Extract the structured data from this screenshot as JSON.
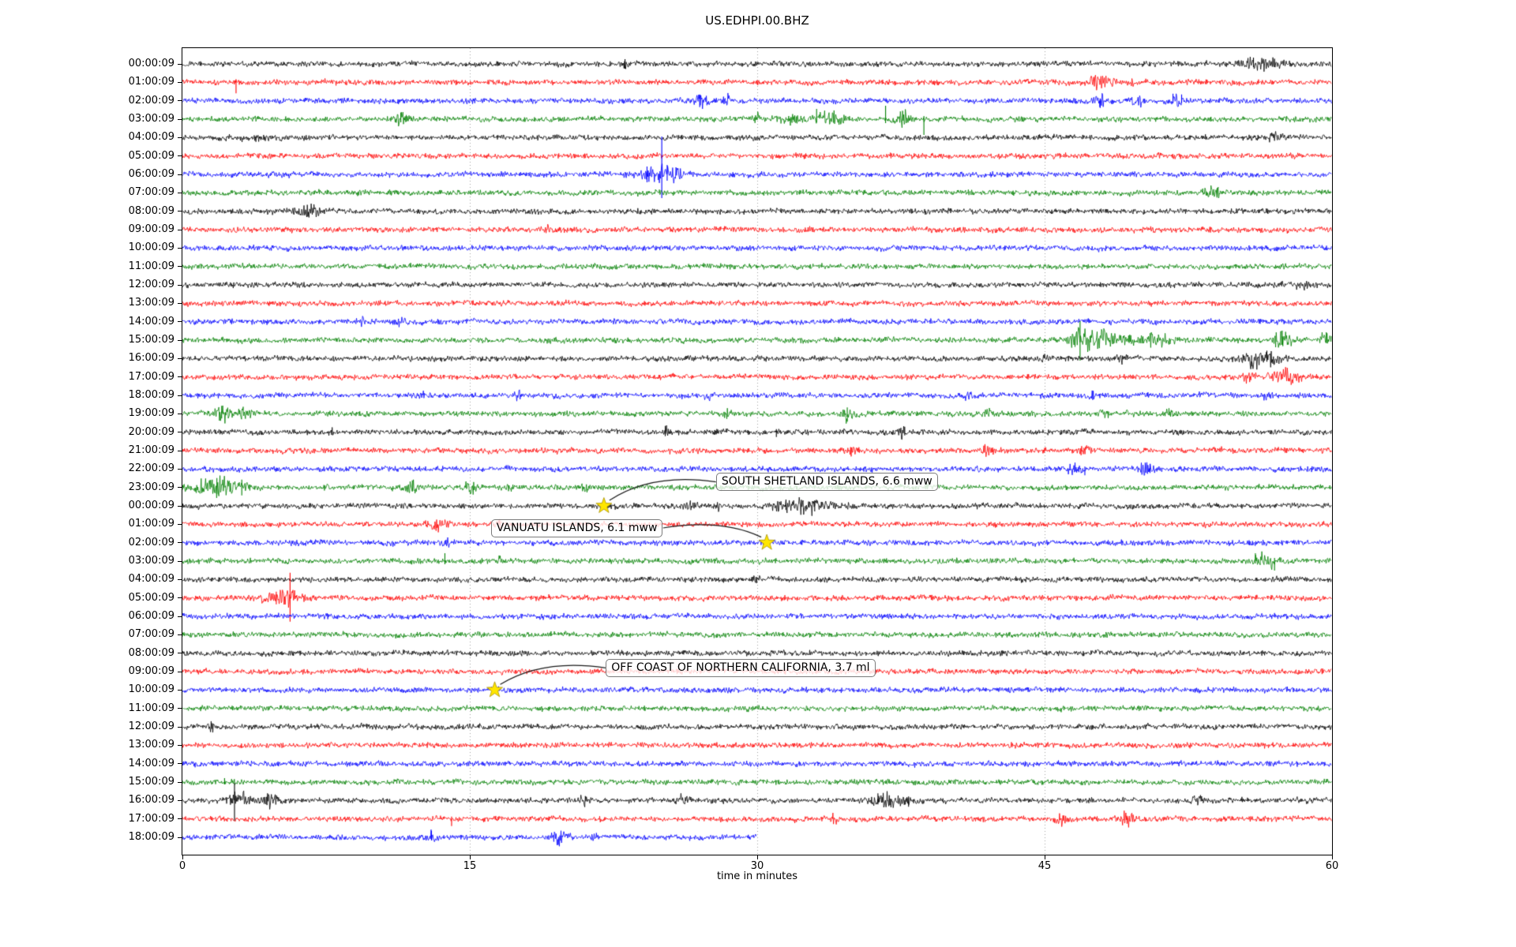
{
  "title": "US.EDHPI.00.BHZ",
  "chart_data": {
    "type": "line",
    "subtype": "seismogram-dayplot",
    "station_id": "US.EDHPI.00.BHZ",
    "xlabel": "time in minutes",
    "x_ticks": [
      0,
      15,
      30,
      45,
      60
    ],
    "x_gridlines": [
      15,
      30,
      45
    ],
    "x_range": [
      0,
      60
    ],
    "minutes_per_row": 60,
    "grid": "vertical-dotted",
    "trace_color_cycle": [
      "#000000",
      "#ff0000",
      "#0000ff",
      "#008000"
    ],
    "marker": {
      "shape": "star",
      "color": "#ffe600"
    },
    "rows": [
      {
        "label": "00:00:09",
        "color": "#000000",
        "end_min": 60,
        "bursts": [
          [
            23.1,
            0.3,
            4
          ],
          [
            56.3,
            1.6,
            5
          ]
        ],
        "spikes": [
          [
            23.1,
            6,
            6
          ],
          [
            55.9,
            8,
            4
          ]
        ]
      },
      {
        "label": "01:00:09",
        "color": "#ff0000",
        "end_min": 60,
        "bursts": [
          [
            2.8,
            0.2,
            3
          ],
          [
            47.7,
            0.7,
            5
          ],
          [
            48.4,
            0.5,
            4
          ],
          [
            49.6,
            0.4,
            4
          ]
        ],
        "spikes": [
          [
            2.8,
            2,
            14
          ]
        ]
      },
      {
        "label": "02:00:09",
        "color": "#0000ff",
        "end_min": 60,
        "bursts": [
          [
            27.1,
            0.5,
            7
          ],
          [
            28.4,
            0.3,
            4
          ],
          [
            47.9,
            0.5,
            6
          ],
          [
            49.9,
            0.4,
            6
          ],
          [
            51.9,
            0.6,
            5
          ]
        ],
        "spikes": [
          [
            27.0,
            8,
            8
          ],
          [
            47.9,
            3,
            9
          ],
          [
            51.7,
            9,
            3
          ],
          [
            52.15,
            8,
            3
          ]
        ]
      },
      {
        "label": "03:00:09",
        "color": "#008000",
        "end_min": 60,
        "bursts": [
          [
            11.4,
            0.5,
            7
          ],
          [
            30.0,
            0.2,
            4
          ],
          [
            31.8,
            0.9,
            5
          ],
          [
            33.8,
            1.2,
            6
          ],
          [
            37.6,
            0.7,
            7
          ]
        ],
        "spikes": [
          [
            33.1,
            13,
            4
          ],
          [
            36.7,
            17,
            5
          ],
          [
            38.7,
            4,
            20
          ],
          [
            11.4,
            8,
            4
          ]
        ]
      },
      {
        "label": "04:00:09",
        "color": "#000000",
        "end_min": 60,
        "bursts": [
          [
            4,
            3,
            1.2
          ],
          [
            57,
            1,
            3
          ]
        ],
        "spikes": []
      },
      {
        "label": "05:00:09",
        "color": "#ff0000",
        "end_min": 60,
        "bursts": [],
        "spikes": []
      },
      {
        "label": "06:00:09",
        "color": "#0000ff",
        "end_min": 60,
        "bursts": [
          [
            24.6,
            1.5,
            7
          ],
          [
            25.6,
            0.8,
            6
          ]
        ],
        "spikes": [
          [
            25.02,
            48,
            30
          ],
          [
            24.25,
            10,
            10
          ],
          [
            25.3,
            12,
            8
          ]
        ]
      },
      {
        "label": "07:00:09",
        "color": "#008000",
        "end_min": 60,
        "bursts": [
          [
            53.8,
            0.8,
            5
          ]
        ],
        "spikes": [
          [
            54.0,
            6,
            5
          ]
        ]
      },
      {
        "label": "08:00:09",
        "color": "#000000",
        "end_min": 60,
        "bursts": [
          [
            6.6,
            0.9,
            7
          ]
        ],
        "spikes": []
      },
      {
        "label": "09:00:09",
        "color": "#ff0000",
        "end_min": 60,
        "bursts": [
          [
            19,
            0.4,
            3
          ]
        ],
        "spikes": []
      },
      {
        "label": "10:00:09",
        "color": "#0000ff",
        "end_min": 60,
        "bursts": [],
        "spikes": []
      },
      {
        "label": "11:00:09",
        "color": "#008000",
        "end_min": 60,
        "bursts": [],
        "spikes": []
      },
      {
        "label": "12:00:09",
        "color": "#000000",
        "end_min": 60,
        "bursts": [
          [
            58.5,
            1.5,
            3
          ]
        ],
        "spikes": []
      },
      {
        "label": "13:00:09",
        "color": "#ff0000",
        "end_min": 60,
        "bursts": [],
        "spikes": []
      },
      {
        "label": "14:00:09",
        "color": "#0000ff",
        "end_min": 60,
        "bursts": [
          [
            9.3,
            0.3,
            4
          ],
          [
            11.5,
            0.4,
            5
          ]
        ],
        "spikes": []
      },
      {
        "label": "15:00:09",
        "color": "#008000",
        "end_min": 60,
        "bursts": [
          [
            46.9,
            0.9,
            10
          ],
          [
            48.2,
            1.6,
            7
          ],
          [
            50.8,
            1.6,
            5
          ],
          [
            57.4,
            0.8,
            9
          ],
          [
            59.6,
            0.5,
            7
          ]
        ],
        "spikes": [
          [
            46.85,
            24,
            26
          ],
          [
            57.4,
            12,
            6
          ],
          [
            59.7,
            10,
            4
          ]
        ]
      },
      {
        "label": "16:00:09",
        "color": "#000000",
        "end_min": 60,
        "bursts": [
          [
            45,
            0.3,
            4
          ],
          [
            49,
            0.3,
            4
          ],
          [
            56.3,
            1.5,
            8
          ]
        ],
        "spikes": [
          [
            55.8,
            4,
            10
          ],
          [
            56.6,
            10,
            4
          ]
        ]
      },
      {
        "label": "17:00:09",
        "color": "#ff0000",
        "end_min": 60,
        "bursts": [
          [
            55.6,
            0.4,
            4
          ],
          [
            57.6,
            1.2,
            6
          ]
        ],
        "spikes": []
      },
      {
        "label": "18:00:09",
        "color": "#0000ff",
        "end_min": 60,
        "bursts": [
          [
            12.4,
            0.3,
            5
          ],
          [
            17.5,
            0.3,
            4
          ],
          [
            27.5,
            0.3,
            3
          ],
          [
            41,
            0.3,
            4
          ],
          [
            47.5,
            0.3,
            4
          ],
          [
            56.5,
            0.4,
            4
          ]
        ],
        "spikes": []
      },
      {
        "label": "19:00:09",
        "color": "#008000",
        "end_min": 60,
        "bursts": [
          [
            2.1,
            0.6,
            9
          ],
          [
            3.2,
            0.5,
            6
          ],
          [
            28.5,
            0.3,
            4
          ],
          [
            34.7,
            0.4,
            7
          ],
          [
            42,
            0.3,
            4
          ],
          [
            48,
            0.4,
            5
          ],
          [
            51.5,
            0.4,
            5
          ]
        ],
        "spikes": [
          [
            2.05,
            10,
            6
          ],
          [
            34.7,
            8,
            4
          ]
        ]
      },
      {
        "label": "20:00:09",
        "color": "#000000",
        "end_min": 60,
        "bursts": [
          [
            7.8,
            0.2,
            3
          ],
          [
            25.2,
            0.3,
            4
          ],
          [
            37.6,
            0.4,
            5
          ]
        ],
        "spikes": [
          [
            25.2,
            8,
            5
          ],
          [
            31,
            4,
            6
          ],
          [
            37.7,
            7,
            4
          ]
        ]
      },
      {
        "label": "21:00:09",
        "color": "#ff0000",
        "end_min": 60,
        "bursts": [
          [
            35,
            0.3,
            4
          ],
          [
            42,
            0.5,
            5
          ],
          [
            47,
            0.5,
            5
          ],
          [
            54,
            0.3,
            3
          ]
        ],
        "spikes": []
      },
      {
        "label": "22:00:09",
        "color": "#0000ff",
        "end_min": 60,
        "bursts": [
          [
            41.5,
            0.3,
            4
          ],
          [
            46.5,
            0.5,
            6
          ],
          [
            50.3,
            0.5,
            5
          ]
        ],
        "spikes": [
          [
            47.1,
            3,
            8
          ],
          [
            50.5,
            6,
            5
          ]
        ]
      },
      {
        "label": "23:00:09",
        "color": "#008000",
        "end_min": 60,
        "bursts": [
          [
            1.8,
            2.3,
            8
          ],
          [
            7.4,
            0.3,
            4
          ],
          [
            12,
            0.4,
            8
          ],
          [
            15,
            0.4,
            6
          ],
          [
            17,
            0.4,
            5
          ],
          [
            21,
            0.3,
            4
          ]
        ],
        "spikes": [
          [
            1.8,
            12,
            8
          ],
          [
            3.1,
            10,
            10
          ],
          [
            12,
            9,
            5
          ]
        ]
      },
      {
        "label": "00:00:09",
        "color": "#000000",
        "end_min": 60,
        "bursts": [
          [
            26.5,
            0.4,
            4
          ],
          [
            28,
            0.3,
            3
          ],
          [
            32.5,
            2.2,
            7
          ]
        ],
        "spikes": [
          [
            31.5,
            8,
            5
          ],
          [
            33,
            7,
            7
          ]
        ]
      },
      {
        "label": "01:00:09",
        "color": "#ff0000",
        "end_min": 60,
        "bursts": [
          [
            13.4,
            0.8,
            6
          ],
          [
            16.6,
            0.3,
            4
          ]
        ],
        "spikes": []
      },
      {
        "label": "02:00:09",
        "color": "#0000ff",
        "end_min": 60,
        "bursts": [
          [
            13.8,
            0.3,
            3
          ]
        ],
        "spikes": []
      },
      {
        "label": "03:00:09",
        "color": "#008000",
        "end_min": 60,
        "bursts": [
          [
            16.5,
            0.3,
            4
          ],
          [
            56.6,
            1.1,
            6
          ]
        ],
        "spikes": [
          [
            13.7,
            10,
            4
          ],
          [
            57.0,
            4,
            12
          ],
          [
            56.0,
            10,
            3
          ]
        ]
      },
      {
        "label": "04:00:09",
        "color": "#000000",
        "end_min": 60,
        "bursts": [
          [
            30,
            0.3,
            3
          ]
        ],
        "spikes": []
      },
      {
        "label": "05:00:09",
        "color": "#ff0000",
        "end_min": 60,
        "bursts": [
          [
            5.3,
            1.3,
            9
          ]
        ],
        "spikes": [
          [
            5.62,
            32,
            30
          ],
          [
            4.9,
            8,
            8
          ]
        ]
      },
      {
        "label": "06:00:09",
        "color": "#0000ff",
        "end_min": 60,
        "bursts": [],
        "spikes": []
      },
      {
        "label": "07:00:09",
        "color": "#008000",
        "end_min": 60,
        "bursts": [],
        "spikes": []
      },
      {
        "label": "08:00:09",
        "color": "#000000",
        "end_min": 60,
        "bursts": [],
        "spikes": []
      },
      {
        "label": "09:00:09",
        "color": "#ff0000",
        "end_min": 60,
        "bursts": [],
        "spikes": []
      },
      {
        "label": "10:00:09",
        "color": "#0000ff",
        "end_min": 60,
        "bursts": [],
        "spikes": []
      },
      {
        "label": "11:00:09",
        "color": "#008000",
        "end_min": 60,
        "bursts": [],
        "spikes": []
      },
      {
        "label": "12:00:09",
        "color": "#000000",
        "end_min": 60,
        "bursts": [
          [
            1.5,
            0.3,
            4
          ]
        ],
        "spikes": []
      },
      {
        "label": "13:00:09",
        "color": "#ff0000",
        "end_min": 60,
        "bursts": [],
        "spikes": []
      },
      {
        "label": "14:00:09",
        "color": "#0000ff",
        "end_min": 60,
        "bursts": [],
        "spikes": []
      },
      {
        "label": "15:00:09",
        "color": "#008000",
        "end_min": 60,
        "bursts": [],
        "spikes": [
          [
            2.2,
            5,
            3
          ]
        ]
      },
      {
        "label": "16:00:09",
        "color": "#000000",
        "end_min": 60,
        "bursts": [
          [
            3.0,
            0.9,
            7
          ],
          [
            4.6,
            0.6,
            6
          ],
          [
            21,
            0.4,
            4
          ],
          [
            26,
            0.4,
            4
          ],
          [
            36.9,
            1.3,
            7
          ],
          [
            53,
            0.4,
            4
          ]
        ],
        "spikes": [
          [
            2.72,
            22,
            26
          ],
          [
            36.3,
            9,
            5
          ],
          [
            37.9,
            5,
            8
          ]
        ]
      },
      {
        "label": "17:00:09",
        "color": "#ff0000",
        "end_min": 60,
        "bursts": [
          [
            34,
            0.4,
            4
          ],
          [
            45.8,
            0.5,
            5
          ],
          [
            49.3,
            0.5,
            6
          ]
        ],
        "spikes": [
          [
            14.05,
            3,
            9
          ],
          [
            49.3,
            4,
            6
          ]
        ]
      },
      {
        "label": "18:00:09",
        "color": "#0000ff",
        "end_min": 30,
        "bursts": [
          [
            13,
            0.4,
            6
          ],
          [
            19.7,
            0.7,
            6
          ],
          [
            21.5,
            0.3,
            4
          ]
        ],
        "spikes": [
          [
            13,
            8,
            4
          ]
        ]
      }
    ],
    "events": [
      {
        "label": "SOUTH SHETLAND ISLANDS, 6.6 mww",
        "star": {
          "row": 24,
          "minute": 22.0
        },
        "label_pos": {
          "minute": 27.85,
          "row": 22.7
        },
        "arrow_side": "left"
      },
      {
        "label": "VANUATU ISLANDS, 6.1 mww",
        "star": {
          "row": 26,
          "minute": 30.5
        },
        "label_pos": {
          "minute": 16.1,
          "row": 25.2
        },
        "arrow_side": "right"
      },
      {
        "label": "OFF COAST OF NORTHERN CALIFORNIA, 3.7 ml",
        "star": {
          "row": 34,
          "minute": 16.3
        },
        "label_pos": {
          "minute": 22.1,
          "row": 32.8
        },
        "arrow_side": "left"
      }
    ]
  },
  "colors": {
    "background": "#ffffff",
    "axis": "#000000",
    "gridline": "#8a8a8a",
    "star_fill": "#ffe600",
    "star_edge": "#a89000",
    "event_box_border": "#7b7b7b",
    "event_box_bg": "rgba(255,255,255,0.78)",
    "arrow": "#1a1a1a"
  }
}
